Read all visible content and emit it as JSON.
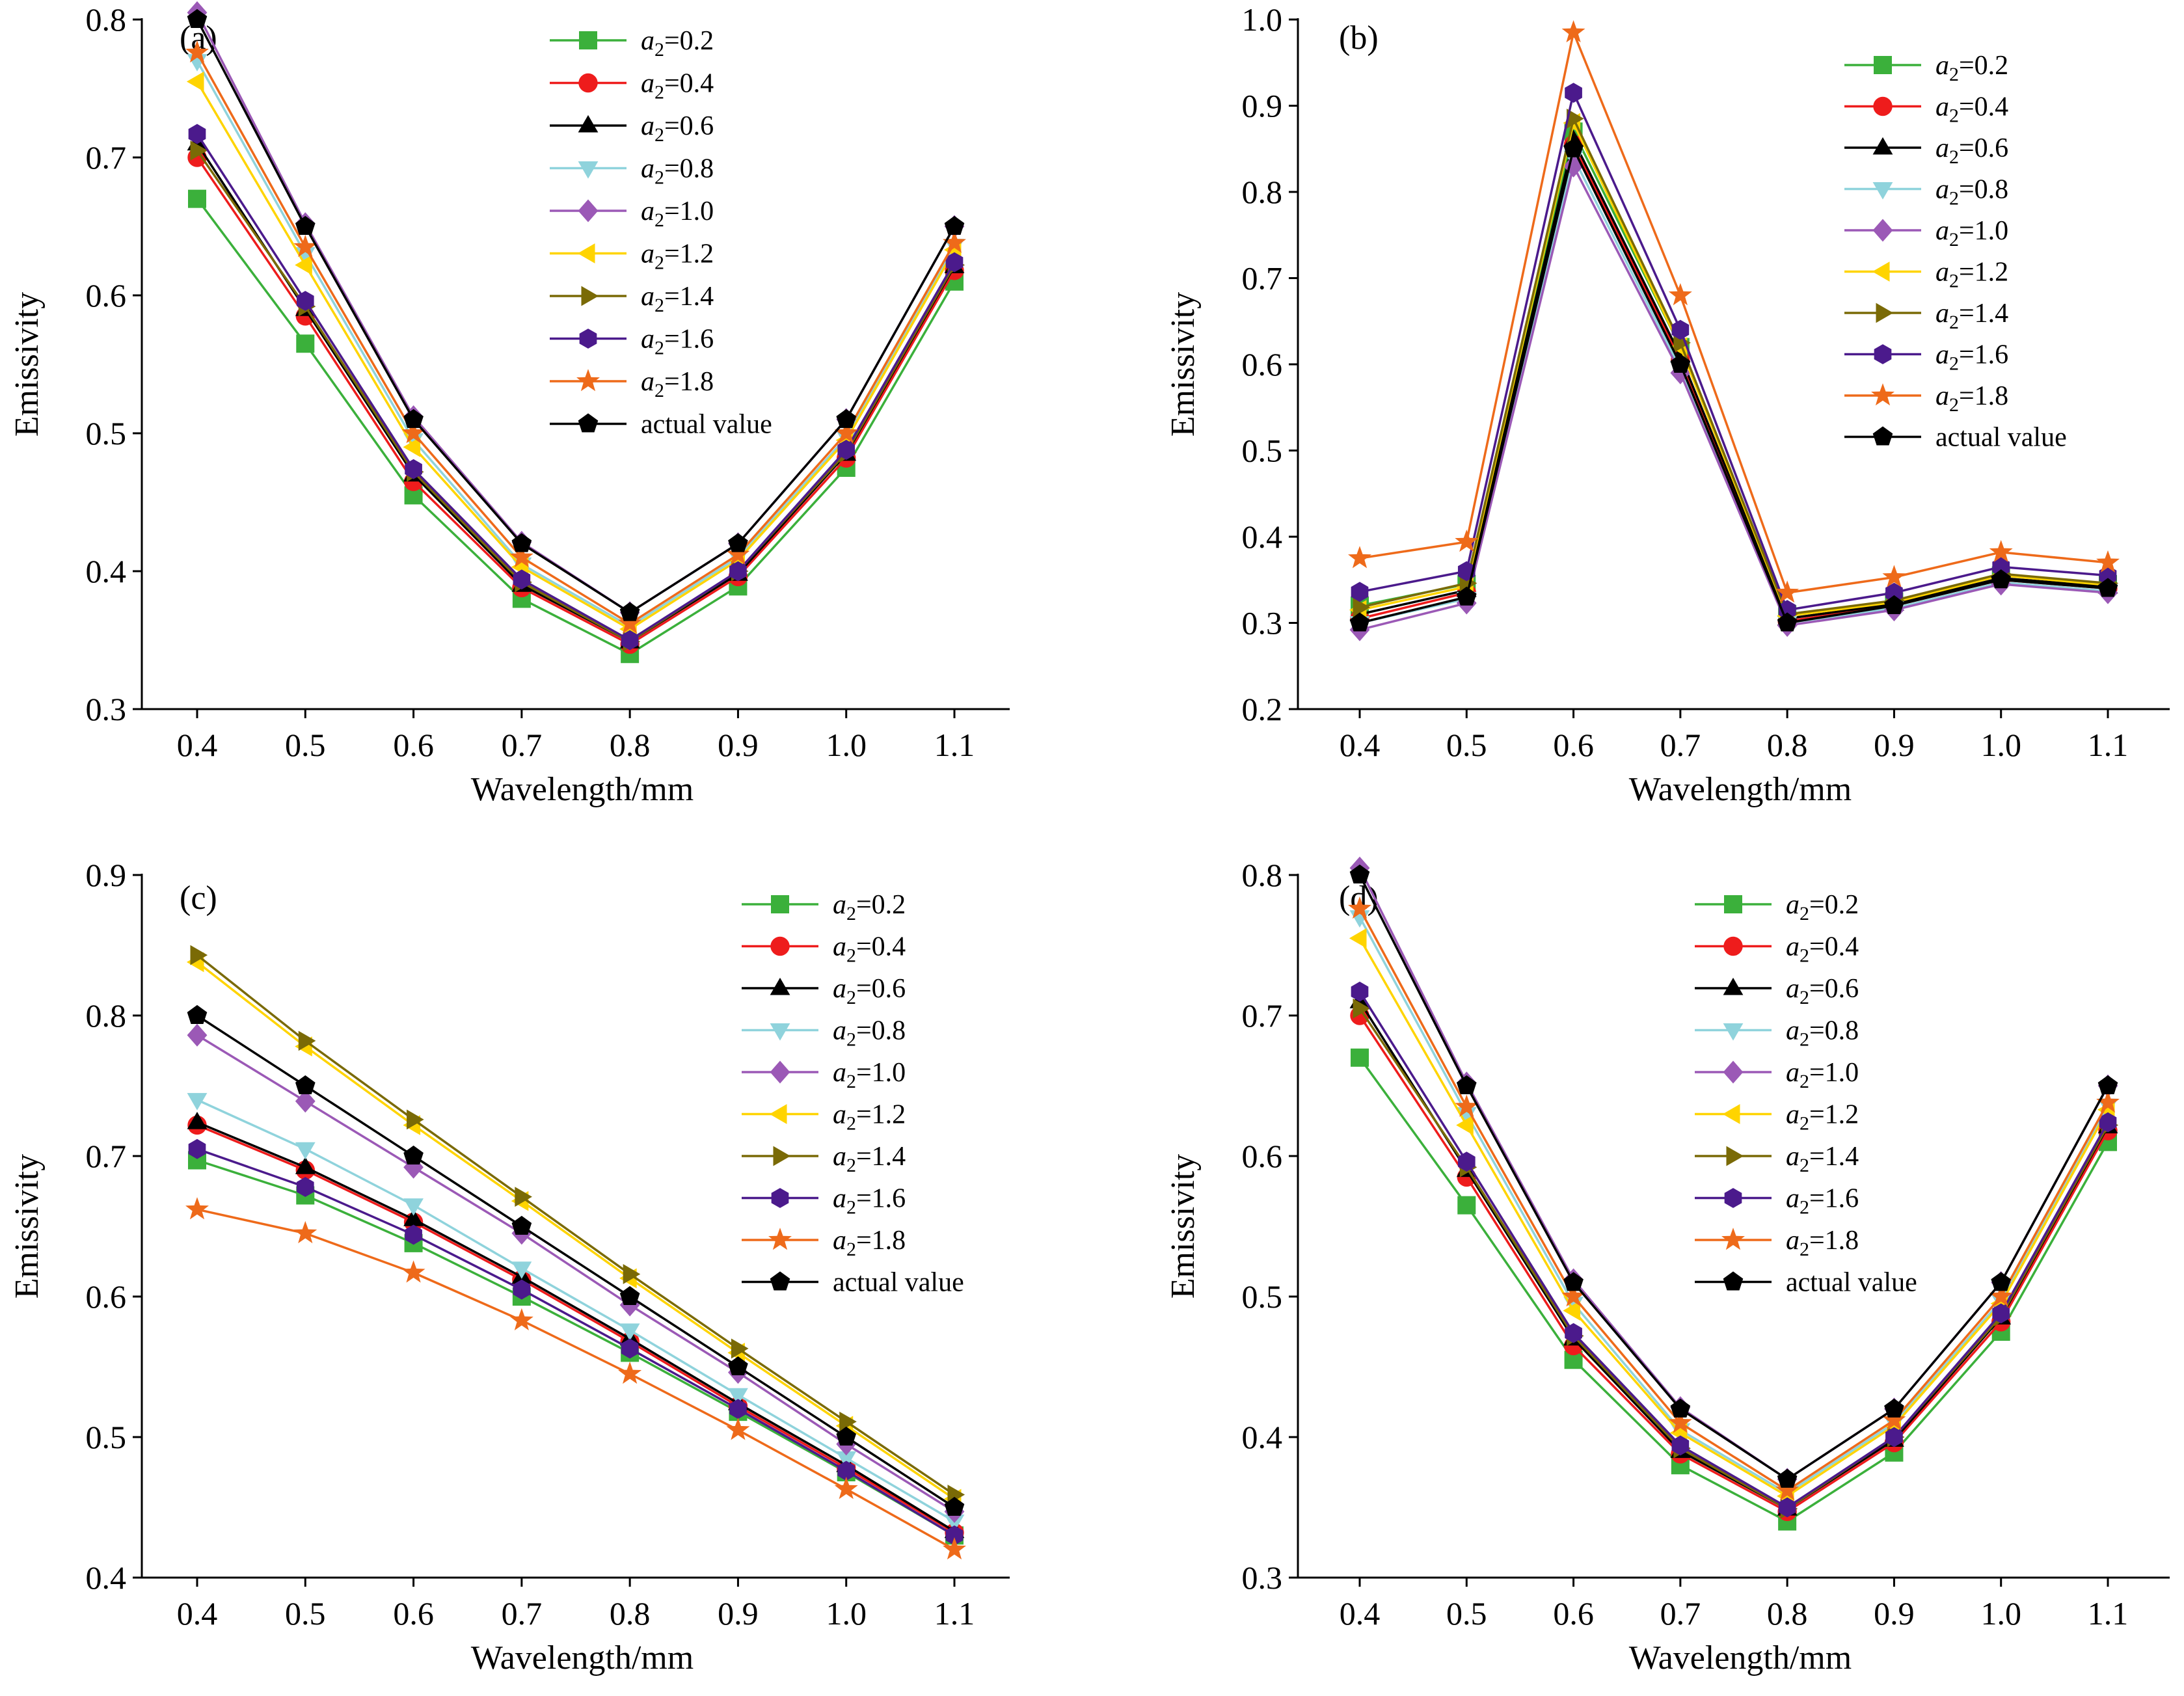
{
  "x_label": "Wavelength/mm",
  "y_label": "Emissivity",
  "x_ticks": [
    "0.4",
    "0.5",
    "0.6",
    "0.7",
    "0.8",
    "0.9",
    "1.0",
    "1.1"
  ],
  "series_styles": [
    {
      "name": "a2=0.2",
      "color": "#3bb03b",
      "marker": "square"
    },
    {
      "name": "a2=0.4",
      "color": "#ee1c1c",
      "marker": "circle"
    },
    {
      "name": "a2=0.6",
      "color": "#000000",
      "marker": "triangle-up"
    },
    {
      "name": "a2=0.8",
      "color": "#8fd3dc",
      "marker": "triangle-down"
    },
    {
      "name": "a2=1.0",
      "color": "#9b59b6",
      "marker": "diamond"
    },
    {
      "name": "a2=1.2",
      "color": "#ffd400",
      "marker": "triangle-left"
    },
    {
      "name": "a2=1.4",
      "color": "#7a6a06",
      "marker": "triangle-right"
    },
    {
      "name": "a2=1.6",
      "color": "#4b1a8c",
      "marker": "hexagon"
    },
    {
      "name": "a2=1.8",
      "color": "#ee6a1a",
      "marker": "star"
    },
    {
      "name": "actual value",
      "color": "#000000",
      "marker": "pentagon"
    }
  ],
  "legend": {
    "a2_prefix": "a",
    "a2_sub": "2",
    "entries": [
      "=0.2",
      "=0.4",
      "=0.6",
      "=0.8",
      "=1.0",
      "=1.2",
      "=1.4",
      "=1.6",
      "=1.8"
    ],
    "actual_label": "actual value"
  },
  "chart_data": [
    {
      "panel": "(a)",
      "type": "line",
      "x": [
        0.4,
        0.5,
        0.6,
        0.7,
        0.8,
        0.9,
        1.0,
        1.1
      ],
      "ylim": [
        0.3,
        0.8
      ],
      "y_ticks": [
        "0.3",
        "0.4",
        "0.5",
        "0.6",
        "0.7",
        "0.8"
      ],
      "xlabel": "Wavelength/mm",
      "ylabel": "Emissivity",
      "legend_position": "top-center",
      "series": [
        {
          "name": "a2=0.2",
          "values": [
            0.67,
            0.565,
            0.455,
            0.38,
            0.34,
            0.389,
            0.475,
            0.61
          ]
        },
        {
          "name": "a2=0.4",
          "values": [
            0.7,
            0.585,
            0.465,
            0.388,
            0.347,
            0.396,
            0.482,
            0.618
          ]
        },
        {
          "name": "a2=0.6",
          "values": [
            0.71,
            0.59,
            0.47,
            0.39,
            0.349,
            0.398,
            0.485,
            0.621
          ]
        },
        {
          "name": "a2=0.8",
          "values": [
            0.77,
            0.63,
            0.495,
            0.405,
            0.36,
            0.41,
            0.497,
            0.636
          ]
        },
        {
          "name": "a2=1.0",
          "values": [
            0.805,
            0.652,
            0.512,
            0.421,
            0.37,
            0.42,
            0.51,
            0.65
          ]
        },
        {
          "name": "a2=1.2",
          "values": [
            0.755,
            0.622,
            0.49,
            0.403,
            0.358,
            0.408,
            0.495,
            0.633
          ]
        },
        {
          "name": "a2=1.4",
          "values": [
            0.705,
            0.592,
            0.472,
            0.392,
            0.349,
            0.4,
            0.486,
            0.622
          ]
        },
        {
          "name": "a2=1.6",
          "values": [
            0.717,
            0.596,
            0.474,
            0.394,
            0.35,
            0.4,
            0.488,
            0.624
          ]
        },
        {
          "name": "a2=1.8",
          "values": [
            0.776,
            0.635,
            0.5,
            0.41,
            0.362,
            0.412,
            0.5,
            0.638
          ]
        },
        {
          "name": "actual value",
          "values": [
            0.8,
            0.65,
            0.51,
            0.42,
            0.37,
            0.42,
            0.51,
            0.65
          ]
        }
      ]
    },
    {
      "panel": "(b)",
      "type": "line",
      "x": [
        0.4,
        0.5,
        0.6,
        0.7,
        0.8,
        0.9,
        1.0,
        1.1
      ],
      "ylim": [
        0.2,
        1.0
      ],
      "y_ticks": [
        "0.2",
        "0.3",
        "0.4",
        "0.5",
        "0.6",
        "0.7",
        "0.8",
        "0.9",
        "1.0"
      ],
      "xlabel": "Wavelength/mm",
      "ylabel": "Emissivity",
      "legend_position": "top-right",
      "series": [
        {
          "name": "a2=0.2",
          "values": [
            0.32,
            0.345,
            0.87,
            0.62,
            0.31,
            0.325,
            0.355,
            0.345
          ]
        },
        {
          "name": "a2=0.4",
          "values": [
            0.305,
            0.335,
            0.855,
            0.605,
            0.302,
            0.32,
            0.35,
            0.34
          ]
        },
        {
          "name": "a2=0.6",
          "values": [
            0.31,
            0.338,
            0.86,
            0.61,
            0.305,
            0.322,
            0.352,
            0.342
          ]
        },
        {
          "name": "a2=0.8",
          "values": [
            0.3,
            0.328,
            0.84,
            0.595,
            0.3,
            0.317,
            0.347,
            0.337
          ]
        },
        {
          "name": "a2=1.0",
          "values": [
            0.292,
            0.323,
            0.83,
            0.59,
            0.297,
            0.315,
            0.345,
            0.335
          ]
        },
        {
          "name": "a2=1.2",
          "values": [
            0.315,
            0.342,
            0.88,
            0.62,
            0.308,
            0.324,
            0.355,
            0.344
          ]
        },
        {
          "name": "a2=1.4",
          "values": [
            0.318,
            0.346,
            0.885,
            0.625,
            0.31,
            0.326,
            0.357,
            0.346
          ]
        },
        {
          "name": "a2=1.6",
          "values": [
            0.336,
            0.36,
            0.915,
            0.64,
            0.315,
            0.335,
            0.365,
            0.355
          ]
        },
        {
          "name": "a2=1.8",
          "values": [
            0.375,
            0.394,
            0.985,
            0.68,
            0.335,
            0.353,
            0.382,
            0.37
          ]
        },
        {
          "name": "actual value",
          "values": [
            0.3,
            0.33,
            0.85,
            0.6,
            0.3,
            0.32,
            0.35,
            0.34
          ]
        }
      ]
    },
    {
      "panel": "(c)",
      "type": "line",
      "x": [
        0.4,
        0.5,
        0.6,
        0.7,
        0.8,
        0.9,
        1.0,
        1.1
      ],
      "ylim": [
        0.4,
        0.9
      ],
      "y_ticks": [
        "0.4",
        "0.5",
        "0.6",
        "0.7",
        "0.8",
        "0.9"
      ],
      "xlabel": "Wavelength/mm",
      "ylabel": "Emissivity",
      "legend_position": "top-right",
      "series": [
        {
          "name": "a2=0.2",
          "values": [
            0.697,
            0.672,
            0.638,
            0.6,
            0.56,
            0.518,
            0.475,
            0.43
          ]
        },
        {
          "name": "a2=0.4",
          "values": [
            0.722,
            0.69,
            0.653,
            0.612,
            0.568,
            0.522,
            0.478,
            0.432
          ]
        },
        {
          "name": "a2=0.6",
          "values": [
            0.724,
            0.692,
            0.655,
            0.614,
            0.57,
            0.524,
            0.48,
            0.433
          ]
        },
        {
          "name": "a2=0.8",
          "values": [
            0.74,
            0.705,
            0.665,
            0.62,
            0.576,
            0.53,
            0.485,
            0.44
          ]
        },
        {
          "name": "a2=1.0",
          "values": [
            0.786,
            0.739,
            0.692,
            0.645,
            0.594,
            0.546,
            0.495,
            0.447
          ]
        },
        {
          "name": "a2=1.2",
          "values": [
            0.838,
            0.778,
            0.722,
            0.668,
            0.613,
            0.56,
            0.508,
            0.456
          ]
        },
        {
          "name": "a2=1.4",
          "values": [
            0.843,
            0.782,
            0.726,
            0.671,
            0.616,
            0.563,
            0.511,
            0.459
          ]
        },
        {
          "name": "a2=1.6",
          "values": [
            0.705,
            0.678,
            0.644,
            0.605,
            0.563,
            0.52,
            0.476,
            0.43
          ]
        },
        {
          "name": "a2=1.8",
          "values": [
            0.662,
            0.645,
            0.617,
            0.583,
            0.545,
            0.505,
            0.463,
            0.42
          ]
        },
        {
          "name": "actual value",
          "values": [
            0.8,
            0.75,
            0.7,
            0.65,
            0.6,
            0.55,
            0.5,
            0.45
          ]
        }
      ]
    },
    {
      "panel": "(d)",
      "type": "line",
      "x": [
        0.4,
        0.5,
        0.6,
        0.7,
        0.8,
        0.9,
        1.0,
        1.1
      ],
      "ylim": [
        0.3,
        0.8
      ],
      "y_ticks": [
        "0.3",
        "0.4",
        "0.5",
        "0.6",
        "0.7",
        "0.8"
      ],
      "xlabel": "Wavelength/mm",
      "ylabel": "Emissivity",
      "legend_position": "top-center",
      "series": [
        {
          "name": "a2=0.2",
          "values": [
            0.67,
            0.565,
            0.455,
            0.38,
            0.34,
            0.389,
            0.475,
            0.61
          ]
        },
        {
          "name": "a2=0.4",
          "values": [
            0.7,
            0.585,
            0.465,
            0.388,
            0.347,
            0.396,
            0.482,
            0.618
          ]
        },
        {
          "name": "a2=0.6",
          "values": [
            0.71,
            0.59,
            0.47,
            0.39,
            0.349,
            0.398,
            0.485,
            0.621
          ]
        },
        {
          "name": "a2=0.8",
          "values": [
            0.77,
            0.63,
            0.495,
            0.405,
            0.36,
            0.41,
            0.497,
            0.636
          ]
        },
        {
          "name": "a2=1.0",
          "values": [
            0.805,
            0.652,
            0.512,
            0.421,
            0.37,
            0.42,
            0.51,
            0.65
          ]
        },
        {
          "name": "a2=1.2",
          "values": [
            0.755,
            0.622,
            0.49,
            0.403,
            0.358,
            0.408,
            0.495,
            0.633
          ]
        },
        {
          "name": "a2=1.4",
          "values": [
            0.705,
            0.592,
            0.472,
            0.392,
            0.349,
            0.4,
            0.486,
            0.622
          ]
        },
        {
          "name": "a2=1.6",
          "values": [
            0.717,
            0.596,
            0.474,
            0.394,
            0.35,
            0.4,
            0.488,
            0.624
          ]
        },
        {
          "name": "a2=1.8",
          "values": [
            0.776,
            0.635,
            0.5,
            0.41,
            0.362,
            0.412,
            0.5,
            0.638
          ]
        },
        {
          "name": "actual value",
          "values": [
            0.8,
            0.65,
            0.51,
            0.42,
            0.37,
            0.42,
            0.51,
            0.65
          ]
        }
      ]
    }
  ]
}
